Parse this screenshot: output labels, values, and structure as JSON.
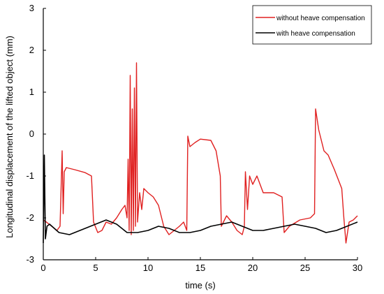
{
  "chart_data": {
    "type": "line",
    "xlabel": "time (s)",
    "ylabel": "Longitudinal displacement of the lifted object (mm)",
    "xlim": [
      0,
      30
    ],
    "ylim": [
      -3,
      3
    ],
    "x_ticks": [
      "0",
      "5",
      "10",
      "15",
      "20",
      "25",
      "30"
    ],
    "y_ticks": [
      "-3",
      "-2",
      "-1",
      "0",
      "1",
      "2",
      "3"
    ],
    "grid": false,
    "legend_position": "top-right",
    "series": [
      {
        "name": "without heave compensation",
        "color": "#e02020",
        "points": [
          [
            0,
            -2.05
          ],
          [
            0.3,
            -2.1
          ],
          [
            0.8,
            -2.2
          ],
          [
            1.3,
            -2.3
          ],
          [
            1.6,
            -2.2
          ],
          [
            1.8,
            -0.4
          ],
          [
            1.9,
            -1.9
          ],
          [
            2.0,
            -0.9
          ],
          [
            2.2,
            -0.8
          ],
          [
            3.0,
            -0.85
          ],
          [
            4.0,
            -0.92
          ],
          [
            4.6,
            -1.0
          ],
          [
            4.8,
            -2.1
          ],
          [
            5.2,
            -2.35
          ],
          [
            5.6,
            -2.3
          ],
          [
            6.0,
            -2.1
          ],
          [
            6.5,
            -2.15
          ],
          [
            7.0,
            -2.0
          ],
          [
            7.5,
            -1.8
          ],
          [
            7.8,
            -1.7
          ],
          [
            8.0,
            -2.0
          ],
          [
            8.1,
            -0.6
          ],
          [
            8.2,
            -2.3
          ],
          [
            8.3,
            1.4
          ],
          [
            8.4,
            -2.4
          ],
          [
            8.5,
            0.6
          ],
          [
            8.6,
            -2.3
          ],
          [
            8.7,
            1.1
          ],
          [
            8.8,
            -2.2
          ],
          [
            8.9,
            1.7
          ],
          [
            9.0,
            -2.1
          ],
          [
            9.2,
            -1.4
          ],
          [
            9.4,
            -1.8
          ],
          [
            9.6,
            -1.3
          ],
          [
            10.0,
            -1.4
          ],
          [
            10.5,
            -1.5
          ],
          [
            11.0,
            -1.7
          ],
          [
            11.5,
            -2.2
          ],
          [
            12.0,
            -2.4
          ],
          [
            12.5,
            -2.3
          ],
          [
            13.0,
            -2.2
          ],
          [
            13.4,
            -2.1
          ],
          [
            13.7,
            -2.3
          ],
          [
            13.8,
            -0.05
          ],
          [
            14.0,
            -0.3
          ],
          [
            14.5,
            -0.2
          ],
          [
            15.0,
            -0.12
          ],
          [
            16.0,
            -0.15
          ],
          [
            16.5,
            -0.4
          ],
          [
            16.9,
            -1.0
          ],
          [
            17.0,
            -2.2
          ],
          [
            17.5,
            -1.95
          ],
          [
            18.0,
            -2.1
          ],
          [
            18.5,
            -2.3
          ],
          [
            19.0,
            -2.4
          ],
          [
            19.2,
            -2.2
          ],
          [
            19.3,
            -0.9
          ],
          [
            19.5,
            -1.8
          ],
          [
            19.7,
            -1.0
          ],
          [
            20.0,
            -1.2
          ],
          [
            20.4,
            -1.0
          ],
          [
            21.0,
            -1.4
          ],
          [
            22.0,
            -1.4
          ],
          [
            22.8,
            -1.5
          ],
          [
            23.0,
            -2.35
          ],
          [
            23.5,
            -2.2
          ],
          [
            24.5,
            -2.05
          ],
          [
            25.5,
            -2.0
          ],
          [
            25.9,
            -1.9
          ],
          [
            26.0,
            0.6
          ],
          [
            26.3,
            0.1
          ],
          [
            26.8,
            -0.4
          ],
          [
            27.2,
            -0.5
          ],
          [
            27.8,
            -0.85
          ],
          [
            28.5,
            -1.3
          ],
          [
            28.7,
            -2.0
          ],
          [
            28.9,
            -2.6
          ],
          [
            29.2,
            -2.1
          ],
          [
            29.6,
            -2.05
          ],
          [
            30.0,
            -1.95
          ]
        ]
      },
      {
        "name": "with heave compensation",
        "color": "#000000",
        "points": [
          [
            0,
            -2.6
          ],
          [
            0.1,
            -0.5
          ],
          [
            0.2,
            -2.5
          ],
          [
            0.35,
            -2.2
          ],
          [
            0.6,
            -2.15
          ],
          [
            1.5,
            -2.35
          ],
          [
            2.5,
            -2.4
          ],
          [
            3.5,
            -2.3
          ],
          [
            4.5,
            -2.2
          ],
          [
            5.5,
            -2.1
          ],
          [
            6.0,
            -2.05
          ],
          [
            7.0,
            -2.15
          ],
          [
            8.0,
            -2.35
          ],
          [
            9.0,
            -2.35
          ],
          [
            10.0,
            -2.3
          ],
          [
            11.0,
            -2.2
          ],
          [
            12.0,
            -2.25
          ],
          [
            13.0,
            -2.35
          ],
          [
            14.0,
            -2.35
          ],
          [
            15.0,
            -2.3
          ],
          [
            16.0,
            -2.2
          ],
          [
            17.0,
            -2.15
          ],
          [
            18.0,
            -2.1
          ],
          [
            19.0,
            -2.2
          ],
          [
            20.0,
            -2.3
          ],
          [
            21.0,
            -2.3
          ],
          [
            22.0,
            -2.25
          ],
          [
            23.0,
            -2.2
          ],
          [
            24.0,
            -2.15
          ],
          [
            25.0,
            -2.2
          ],
          [
            26.0,
            -2.25
          ],
          [
            27.0,
            -2.35
          ],
          [
            28.0,
            -2.3
          ],
          [
            29.0,
            -2.2
          ],
          [
            30.0,
            -2.1
          ]
        ]
      }
    ]
  }
}
